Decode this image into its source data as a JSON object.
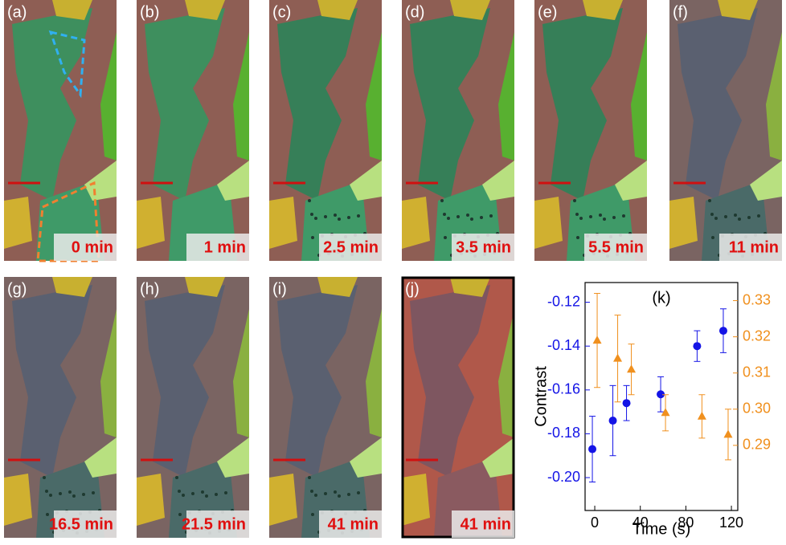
{
  "panels": [
    {
      "label": "(a)",
      "time": "0 min"
    },
    {
      "label": "(b)",
      "time": "1 min"
    },
    {
      "label": "(c)",
      "time": "2.5 min"
    },
    {
      "label": "(d)",
      "time": "3.5 min"
    },
    {
      "label": "(e)",
      "time": "5.5 min"
    },
    {
      "label": "(f)",
      "time": "11 min"
    },
    {
      "label": "(g)",
      "time": "16.5 min"
    },
    {
      "label": "(h)",
      "time": "21.5 min"
    },
    {
      "label": "(i)",
      "time": "41 min"
    },
    {
      "label": "(j)",
      "time": "41 min"
    }
  ],
  "chart_data": {
    "type": "scatter",
    "title": "(k)",
    "x_label": "Time (s)",
    "y_label": "Contrast",
    "x": [
      0,
      18,
      30,
      60,
      92,
      115
    ],
    "series": [
      {
        "color": "#1414e6",
        "marker": "circle",
        "values": [
          -0.187,
          -0.174,
          -0.166,
          -0.162,
          -0.14,
          -0.133
        ],
        "errors": [
          0.015,
          0.016,
          0.008,
          0.008,
          0.007,
          0.01
        ]
      },
      {
        "color": "#f0901e",
        "marker": "triangle",
        "axis": "y2",
        "values": [
          0.319,
          0.314,
          0.311,
          0.299,
          0.298,
          0.293
        ],
        "errors": [
          0.013,
          0.012,
          0.007,
          0.005,
          0.006,
          0.007
        ]
      }
    ],
    "xlim": [
      -8.5,
      125.6
    ],
    "xticks": [
      0,
      40,
      80,
      120
    ],
    "ylim": [
      -0.215,
      -0.111
    ],
    "yticks": [
      {
        "value": -0.2,
        "label": "-0.20"
      },
      -0.18,
      -0.16,
      -0.14,
      -0.12
    ],
    "y2lim": [
      0.272,
      0.335
    ],
    "y2ticks": [
      0.29,
      {
        "value": 0.3,
        "label": "0.30"
      },
      0.31,
      0.32,
      0.33
    ]
  }
}
